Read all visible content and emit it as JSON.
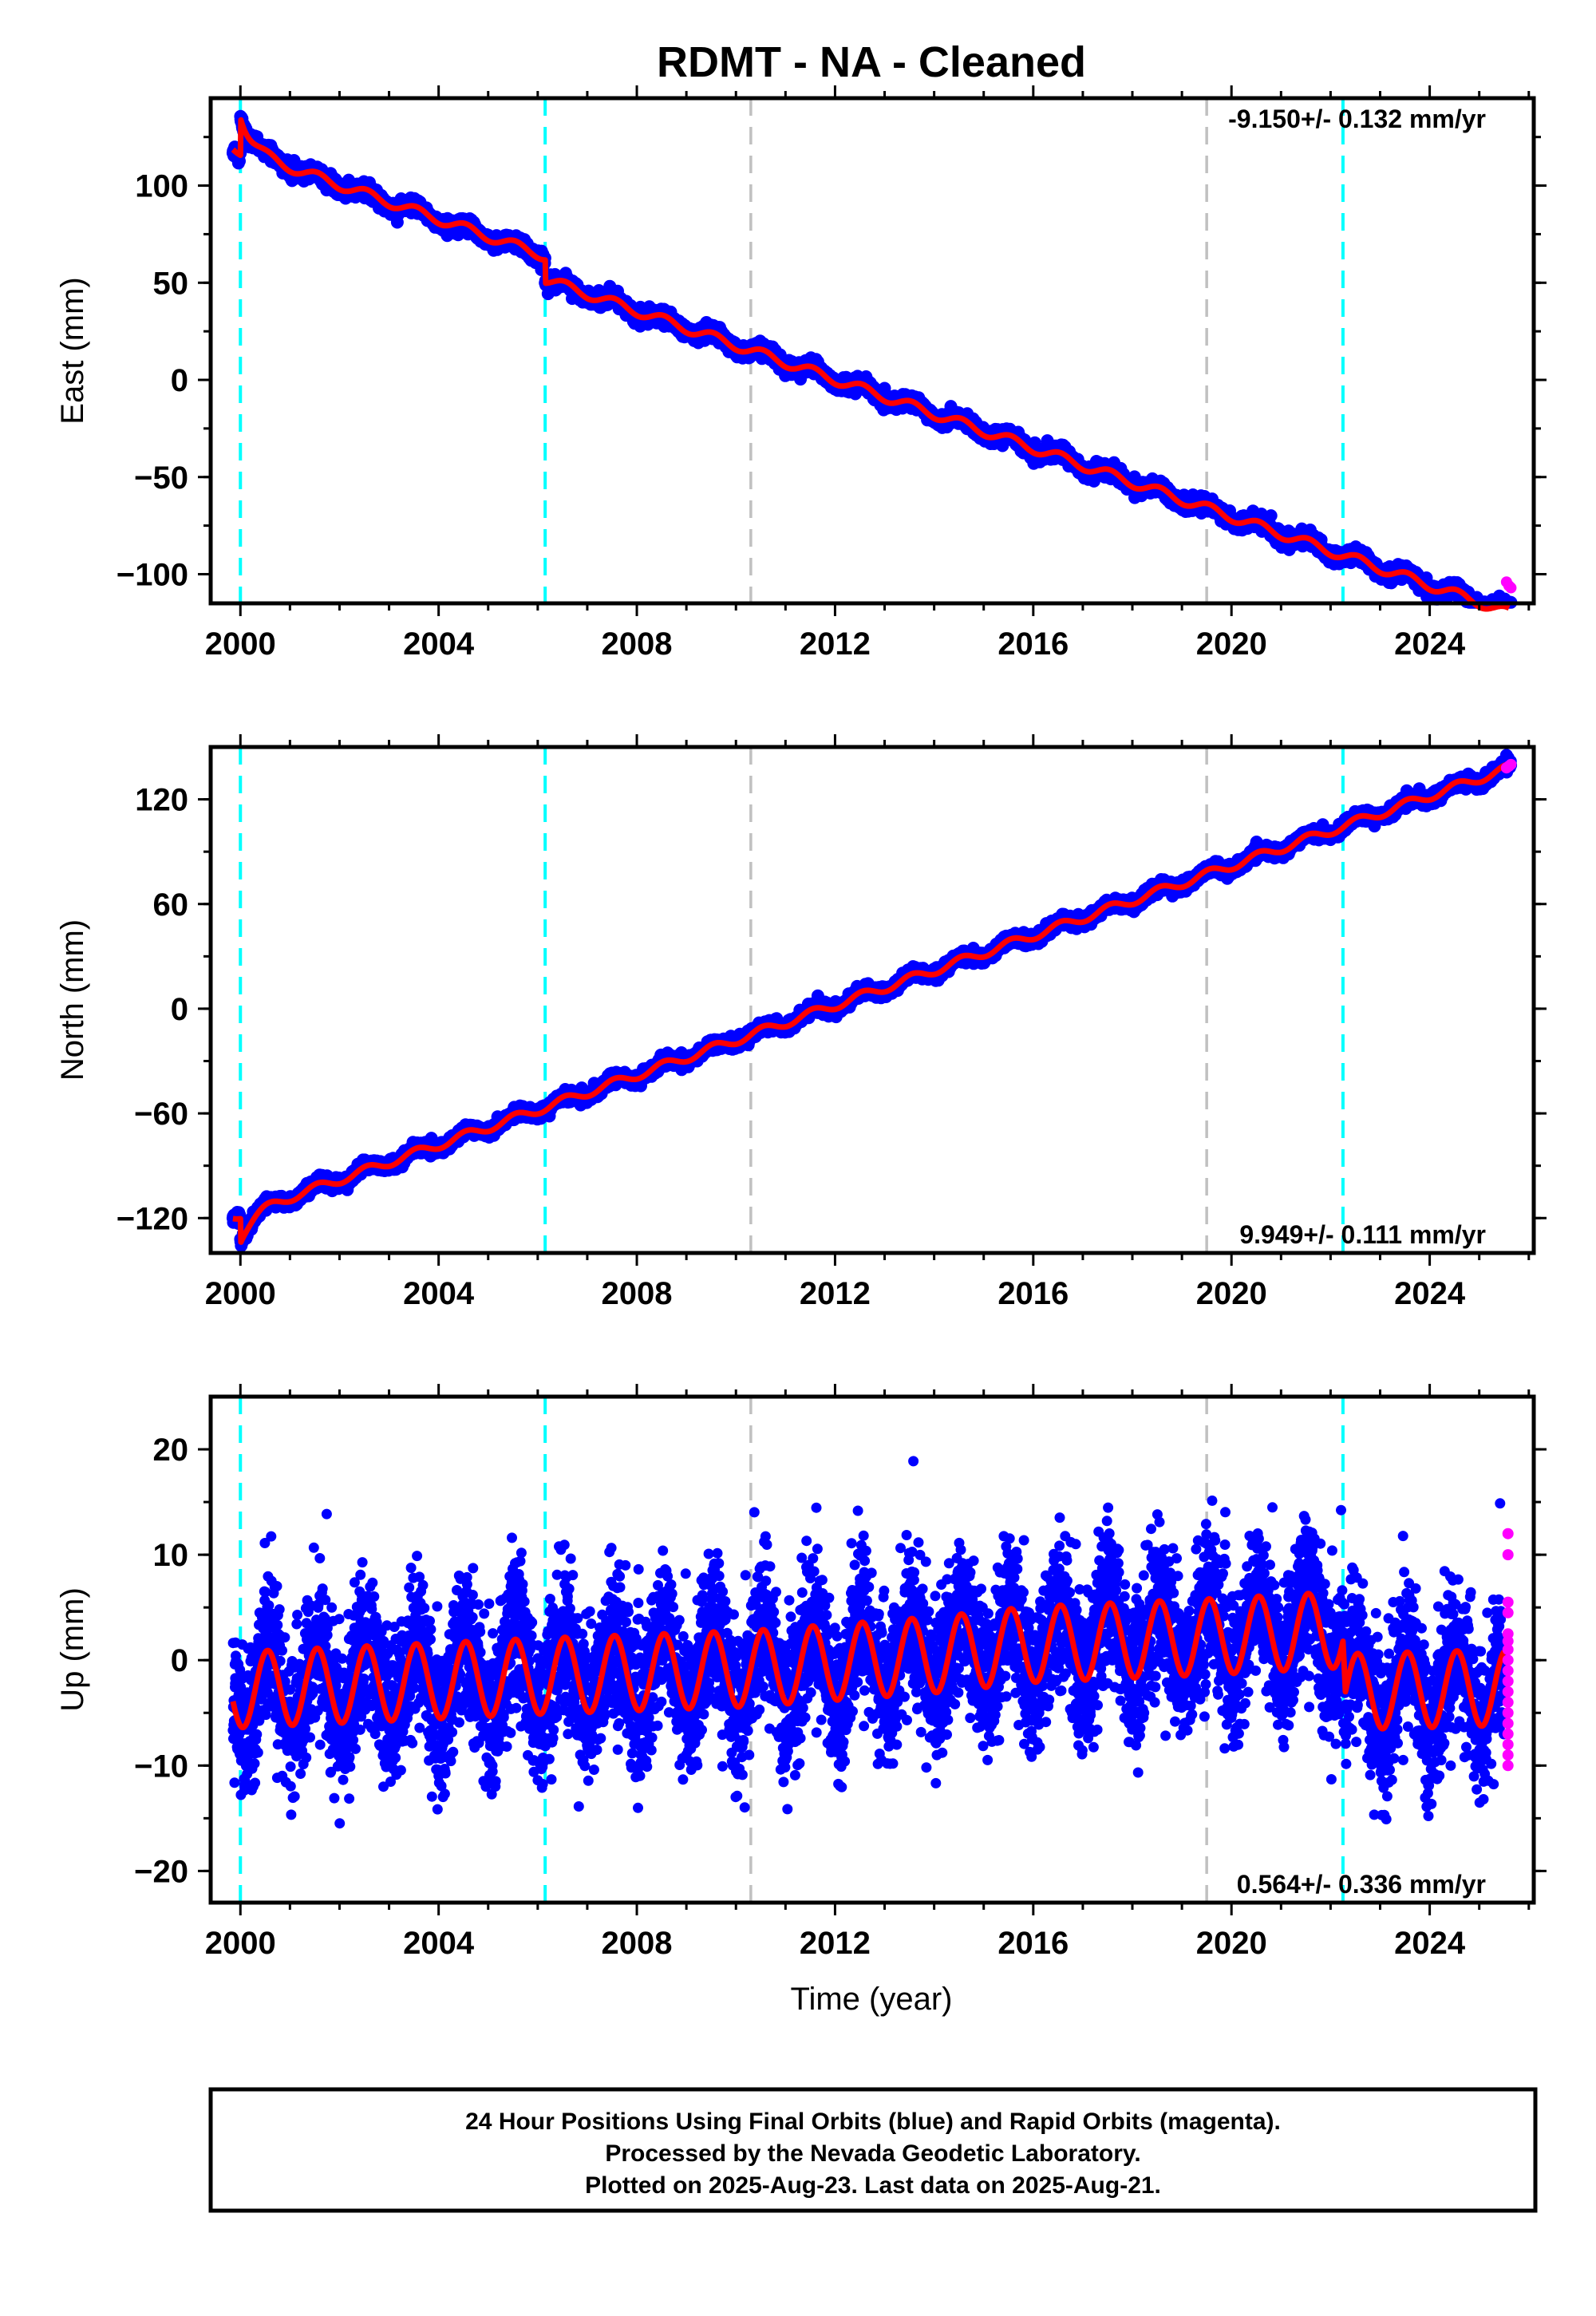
{
  "title": "RDMT  - NA - Cleaned",
  "xlabel": "Time (year)",
  "xticks": [
    2000,
    2004,
    2008,
    2012,
    2016,
    2020,
    2024
  ],
  "colors": {
    "final": "#0000ff",
    "rapid": "#ff00ff",
    "model": "#ff0000",
    "equipment_change": "#00ffff",
    "other_event": "#c0c0c0"
  },
  "event_lines": [
    {
      "year": 2000.0,
      "kind": "equipment_change"
    },
    {
      "year": 2006.15,
      "kind": "equipment_change"
    },
    {
      "year": 2010.3,
      "kind": "other_event"
    },
    {
      "year": 2019.5,
      "kind": "other_event"
    },
    {
      "year": 2022.25,
      "kind": "equipment_change"
    }
  ],
  "chart_data": [
    {
      "type": "scatter",
      "ylabel": "East (mm)",
      "rate_label": "-9.150+/- 0.132 mm/yr",
      "xlim": [
        1999.4,
        2026.1
      ],
      "ylim": [
        -115,
        145
      ],
      "yticks": [
        100,
        50,
        0,
        -50,
        -100
      ],
      "ytick_labels": [
        "100",
        "50",
        "0",
        "−50",
        "−100"
      ],
      "x_range": [
        1999.85,
        2025.64
      ],
      "series": [
        {
          "name": "Final Orbits",
          "trend": [
            [
              2000.0,
              118
            ],
            [
              2024.6,
              -99
            ]
          ],
          "break": {
            "year": 2000.0,
            "from": 137,
            "to": 118
          },
          "offsets": [
            {
              "year": 2006.15,
              "size": -12
            }
          ],
          "seasonal_amp": 2.5,
          "scatter": 2.2
        },
        {
          "name": "Rapid Orbits",
          "points": [
            [
              2025.55,
              -104
            ],
            [
              2025.6,
              -106
            ],
            [
              2025.64,
              -107
            ]
          ]
        }
      ]
    },
    {
      "type": "scatter",
      "ylabel": "North (mm)",
      "rate_label": "9.949+/- 0.111 mm/yr",
      "xlim": [
        1999.4,
        2026.1
      ],
      "ylim": [
        -140,
        150
      ],
      "yticks": [
        120,
        60,
        0,
        -60,
        -120
      ],
      "ytick_labels": [
        "120",
        "60",
        "0",
        "−60",
        "−120"
      ],
      "x_range": [
        1999.85,
        2025.64
      ],
      "series": [
        {
          "name": "Final Orbits",
          "trend": [
            [
              2000.0,
              -118
            ],
            [
              2025.6,
              138
            ]
          ],
          "break": {
            "year": 2000.0,
            "from": -132,
            "to": -118
          },
          "offsets": [],
          "seasonal_amp": 2.5,
          "scatter": 2.0
        },
        {
          "name": "Rapid Orbits",
          "points": [
            [
              2025.55,
              138
            ],
            [
              2025.6,
              139
            ],
            [
              2025.64,
              140
            ]
          ]
        }
      ]
    },
    {
      "type": "scatter",
      "ylabel": "Up (mm)",
      "rate_label": "0.564+/- 0.336 mm/yr",
      "xlim": [
        1999.4,
        2026.1
      ],
      "ylim": [
        -23,
        25
      ],
      "yticks": [
        20,
        10,
        0,
        -10,
        -20
      ],
      "ytick_labels": [
        "20",
        "10",
        "0",
        "−10",
        "−20"
      ],
      "x_range": [
        1999.85,
        2025.5
      ],
      "series": [
        {
          "name": "Final Orbits",
          "model": [
            [
              2000.0,
              -2.8
            ],
            [
              2006.15,
              -1.5
            ],
            [
              2010.3,
              -0.8
            ],
            [
              2014,
              0.5
            ],
            [
              2016,
              1.5
            ],
            [
              2019.5,
              2.2
            ],
            [
              2022.25,
              2.9
            ],
            [
              2022.3,
              -3.0
            ],
            [
              2025.5,
              -2.6
            ]
          ],
          "seasonal_amp": 3.6,
          "scatter": 3.5
        },
        {
          "name": "Rapid Orbits",
          "points": [
            [
              2025.58,
              12
            ],
            [
              2025.58,
              10
            ],
            [
              2025.58,
              5.5
            ],
            [
              2025.58,
              4.5
            ],
            [
              2025.58,
              2.5
            ],
            [
              2025.58,
              1.8
            ],
            [
              2025.58,
              1
            ],
            [
              2025.58,
              0
            ],
            [
              2025.58,
              -1
            ],
            [
              2025.58,
              -2
            ],
            [
              2025.58,
              -3
            ],
            [
              2025.58,
              -4
            ],
            [
              2025.58,
              -5
            ],
            [
              2025.58,
              -6
            ],
            [
              2025.58,
              -7
            ],
            [
              2025.58,
              -8
            ],
            [
              2025.58,
              -9
            ],
            [
              2025.58,
              -10
            ]
          ]
        }
      ]
    }
  ],
  "footer": {
    "line1": "24 Hour Positions Using Final Orbits (blue) and Rapid Orbits (magenta).",
    "line2": "Processed by the Nevada Geodetic Laboratory.",
    "line3": "Plotted on 2025-Aug-23. Last data on 2025-Aug-21."
  }
}
